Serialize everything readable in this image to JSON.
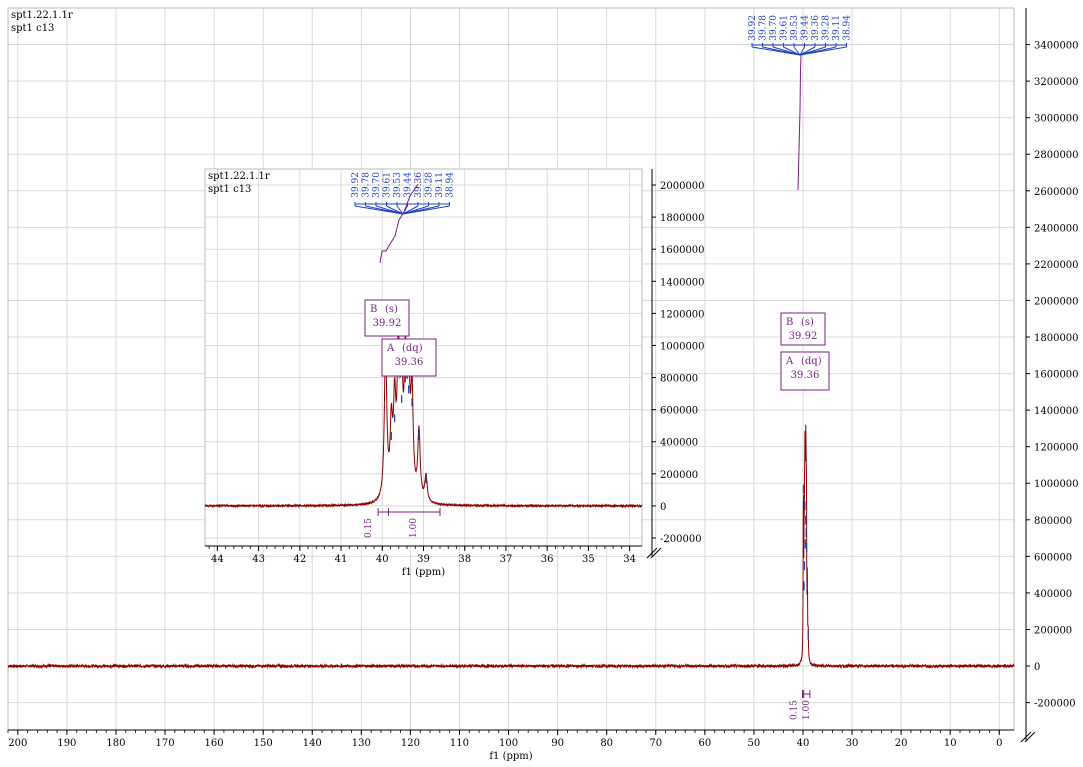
{
  "colors": {
    "spectrum": "#8b0000",
    "peak_marker": "#1f3fbf",
    "label": "#7a1f86",
    "grid": "#d9d9d9",
    "axis": "#000000"
  },
  "chart_data": [
    {
      "type": "line",
      "id": "main-spectrum",
      "header": [
        "spt1.22.1.1r",
        "spt1   c13"
      ],
      "xlabel": "f1 (ppm)",
      "xlim": [
        202,
        -3
      ],
      "x_reversed": true,
      "x_ticks": [
        200,
        190,
        180,
        170,
        160,
        150,
        140,
        130,
        120,
        110,
        100,
        90,
        80,
        70,
        60,
        50,
        40,
        30,
        20,
        10,
        0
      ],
      "ylim": [
        -350000,
        3600000
      ],
      "y_ticks": [
        -200000,
        0,
        200000,
        400000,
        600000,
        800000,
        1000000,
        1200000,
        1400000,
        1600000,
        1800000,
        2000000,
        2200000,
        2400000,
        2600000,
        2800000,
        3000000,
        3200000,
        3400000
      ],
      "y_tick_labels": [
        "-200000",
        "0",
        "200000",
        "400000",
        "600000",
        "800000",
        "1000000",
        "1200000",
        "1400000",
        "1600000",
        "1800000",
        "2000000",
        "2200000",
        "2400000",
        "2600000",
        "2800000",
        "3000000",
        "3200000",
        "3400000"
      ],
      "grid": true,
      "peaks": [
        {
          "ppm": 39.92,
          "intensity": 960000
        },
        {
          "ppm": 39.78,
          "intensity": 430000
        },
        {
          "ppm": 39.7,
          "intensity": 540000
        },
        {
          "ppm": 39.61,
          "intensity": 870000
        },
        {
          "ppm": 39.53,
          "intensity": 660000
        },
        {
          "ppm": 39.44,
          "intensity": 790000
        },
        {
          "ppm": 39.36,
          "intensity": 720000
        },
        {
          "ppm": 39.28,
          "intensity": 640000
        },
        {
          "ppm": 39.11,
          "intensity": 430000
        },
        {
          "ppm": 38.94,
          "intensity": 160000
        }
      ],
      "peak_labels": [
        "39.92",
        "39.78",
        "39.70",
        "39.61",
        "39.53",
        "39.44",
        "39.36",
        "39.28",
        "39.11",
        "38.94"
      ],
      "multiplets": [
        {
          "letter": "B",
          "mult": "(s)",
          "shift": "39.92"
        },
        {
          "letter": "A",
          "mult": "(dq)",
          "shift": "39.36"
        }
      ],
      "integrals": [
        {
          "from": 40.1,
          "to": 39.85,
          "value": "0.15"
        },
        {
          "from": 39.85,
          "to": 38.6,
          "value": "1.00"
        }
      ]
    },
    {
      "type": "line",
      "id": "inset-spectrum",
      "header": [
        "spt1.22.1.1r",
        "spt1   c13"
      ],
      "xlabel": "f1 (ppm)",
      "xlim": [
        44.3,
        33.7
      ],
      "x_reversed": true,
      "x_ticks": [
        44,
        43,
        42,
        41,
        40,
        39,
        38,
        37,
        36,
        35,
        34
      ],
      "ylim": [
        -250000,
        2100000
      ],
      "y_ticks": [
        -200000,
        0,
        200000,
        400000,
        600000,
        800000,
        1000000,
        1200000,
        1400000,
        1600000,
        1800000,
        2000000
      ],
      "y_tick_labels": [
        "-200000",
        "0",
        "200000",
        "400000",
        "600000",
        "800000",
        "1000000",
        "1200000",
        "1400000",
        "1600000",
        "1800000",
        "2000000"
      ],
      "grid": true,
      "peaks": [
        {
          "ppm": 39.92,
          "intensity": 960000
        },
        {
          "ppm": 39.78,
          "intensity": 430000
        },
        {
          "ppm": 39.7,
          "intensity": 540000
        },
        {
          "ppm": 39.61,
          "intensity": 870000
        },
        {
          "ppm": 39.53,
          "intensity": 660000
        },
        {
          "ppm": 39.44,
          "intensity": 790000
        },
        {
          "ppm": 39.36,
          "intensity": 720000
        },
        {
          "ppm": 39.28,
          "intensity": 640000
        },
        {
          "ppm": 39.11,
          "intensity": 430000
        },
        {
          "ppm": 38.94,
          "intensity": 160000
        }
      ],
      "peak_labels": [
        "39.92",
        "39.78",
        "39.70",
        "39.61",
        "39.53",
        "39.44",
        "39.36",
        "39.28",
        "39.11",
        "38.94"
      ],
      "multiplets": [
        {
          "letter": "B",
          "mult": "(s)",
          "shift": "39.92"
        },
        {
          "letter": "A",
          "mult": "(dq)",
          "shift": "39.36"
        }
      ],
      "integrals": [
        {
          "from": 40.1,
          "to": 39.85,
          "value": "0.15"
        },
        {
          "from": 39.85,
          "to": 38.6,
          "value": "1.00"
        }
      ]
    }
  ]
}
